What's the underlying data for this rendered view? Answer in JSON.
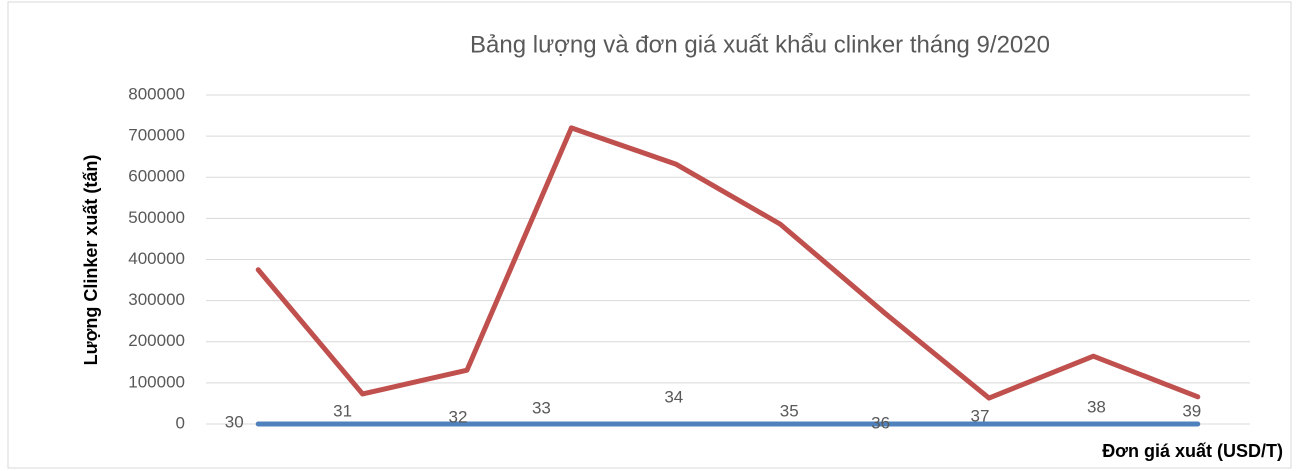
{
  "chart_data": {
    "type": "line",
    "title": "Bảng lượng và đơn giá xuất khẩu clinker tháng 9/2020",
    "y_label": "Lượng Clinker xuất (tấn)",
    "x_label": "Đơn giá xuất (USD/T)",
    "categories": [
      null,
      null,
      null,
      null,
      null,
      null,
      null,
      null,
      null,
      null
    ],
    "series": [
      {
        "color": "#c0504d",
        "values": [
          375000,
          73000,
          131000,
          720000,
          632000,
          486000,
          270000,
          63000,
          165000,
          66000
        ]
      },
      {
        "color": "#4f81bd",
        "values": [
          30,
          31,
          32,
          33,
          34,
          35,
          36,
          37,
          38,
          39
        ],
        "data_labels": true
      }
    ],
    "ylim": [
      0,
      800000
    ],
    "yticks": [
      0,
      100000,
      200000,
      300000,
      400000,
      500000,
      600000,
      700000,
      800000
    ],
    "grid": true
  }
}
